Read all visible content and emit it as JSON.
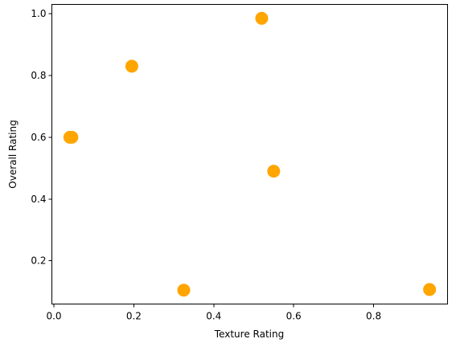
{
  "chart_data": {
    "type": "scatter",
    "title": "",
    "xlabel": "Texture Rating",
    "ylabel": "Overall Rating",
    "xlim": [
      -0.005,
      0.985
    ],
    "ylim": [
      0.06,
      1.03
    ],
    "xticks": [
      0.0,
      0.2,
      0.4,
      0.6,
      0.8
    ],
    "yticks": [
      0.2,
      0.4,
      0.6,
      0.8,
      1.0
    ],
    "xtick_labels": [
      "0.0",
      "0.2",
      "0.4",
      "0.6",
      "0.8"
    ],
    "ytick_labels": [
      "0.2",
      "0.4",
      "0.6",
      "0.8",
      "1.0"
    ],
    "grid": false,
    "legend": "none",
    "marker_color": "#ffa500",
    "points": [
      {
        "x": 0.04,
        "y": 0.6
      },
      {
        "x": 0.045,
        "y": 0.6
      },
      {
        "x": 0.195,
        "y": 0.83
      },
      {
        "x": 0.325,
        "y": 0.105
      },
      {
        "x": 0.52,
        "y": 0.985
      },
      {
        "x": 0.55,
        "y": 0.49
      },
      {
        "x": 0.94,
        "y": 0.107
      }
    ]
  }
}
